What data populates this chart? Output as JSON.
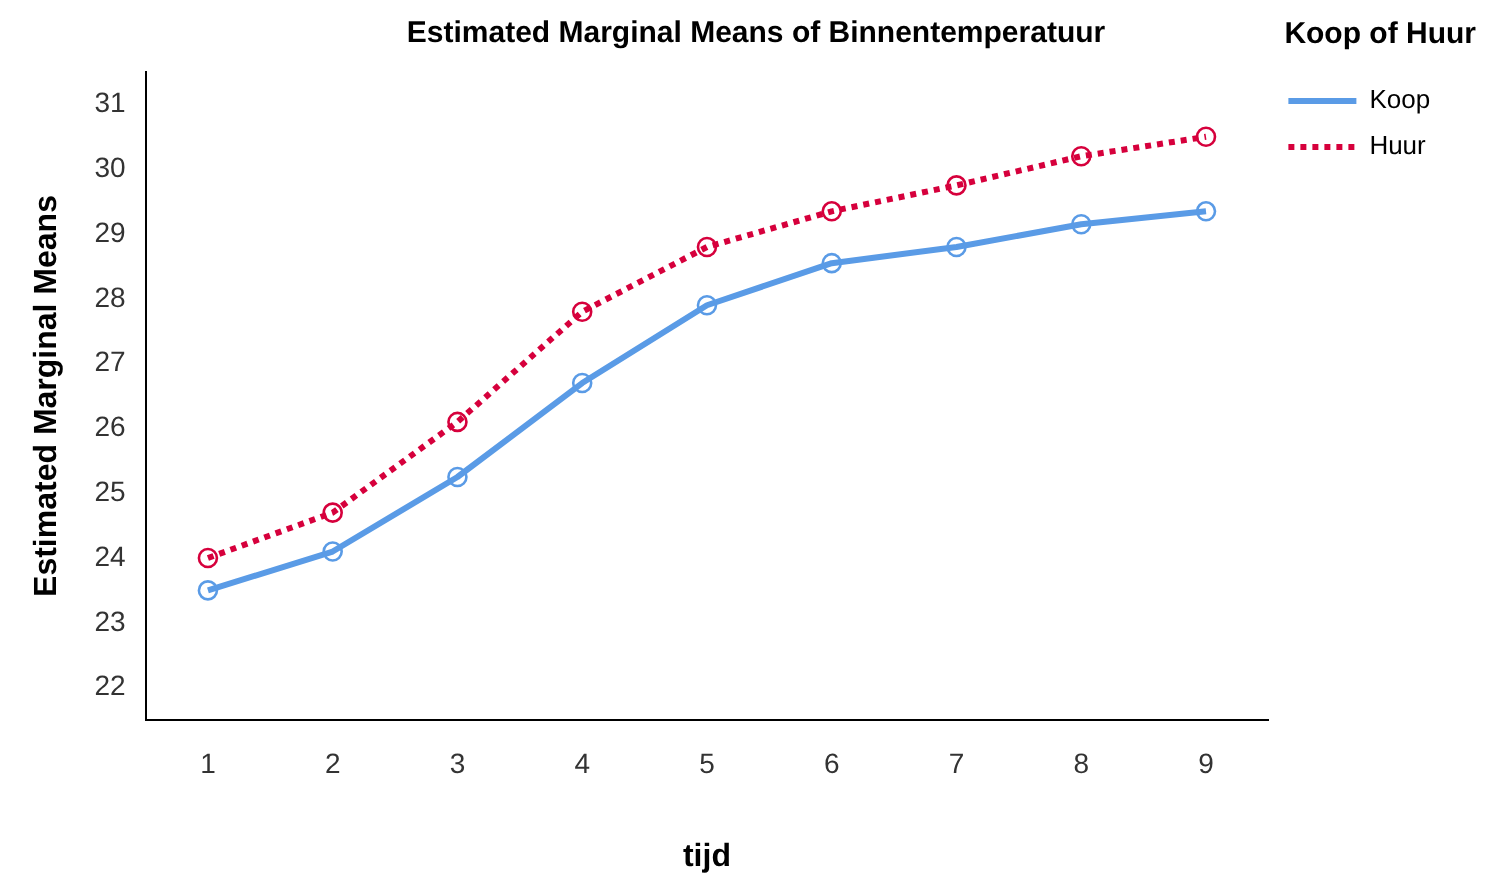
{
  "chart_data": {
    "type": "line",
    "title": "Estimated Marginal Means of Binnentemperatuur",
    "xlabel": "tijd",
    "ylabel": "Estimated Marginal Means",
    "legend_title": "Koop of Huur",
    "categories": [
      "1",
      "2",
      "3",
      "4",
      "5",
      "6",
      "7",
      "8",
      "9"
    ],
    "series": [
      {
        "name": "Koop",
        "color": "#5a9be6",
        "line_style": "solid",
        "values": [
          23.5,
          24.1,
          25.25,
          26.7,
          27.9,
          28.55,
          28.8,
          29.15,
          29.35
        ]
      },
      {
        "name": "Huur",
        "color": "#d6003c",
        "line_style": "dotted",
        "values": [
          24.0,
          24.7,
          26.1,
          27.8,
          28.8,
          29.35,
          29.75,
          30.2,
          30.5
        ]
      }
    ],
    "ylim": [
      21.5,
      31.5
    ],
    "yticks": [
      22,
      23,
      24,
      25,
      26,
      27,
      28,
      29,
      30,
      31
    ],
    "grid": false,
    "legend": "top right",
    "marker": "circle"
  }
}
